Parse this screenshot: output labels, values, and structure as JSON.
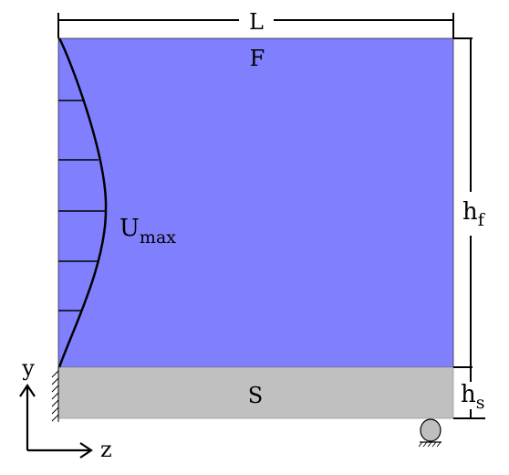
{
  "labels": {
    "length": "L",
    "fluid": "F",
    "solid": "S",
    "velocity_main": "U",
    "velocity_sub": "max",
    "fluid_height_main": "h",
    "fluid_height_sub": "f",
    "solid_height_main": "h",
    "solid_height_sub": "s",
    "axis_y": "y",
    "axis_z": "z"
  },
  "colors": {
    "fluid": "#8080ff",
    "solid": "#c0c0c0",
    "line": "#000000",
    "support": "#bfbfbf"
  },
  "profile": {
    "shape": "parabolic",
    "arrow_count": 5
  }
}
